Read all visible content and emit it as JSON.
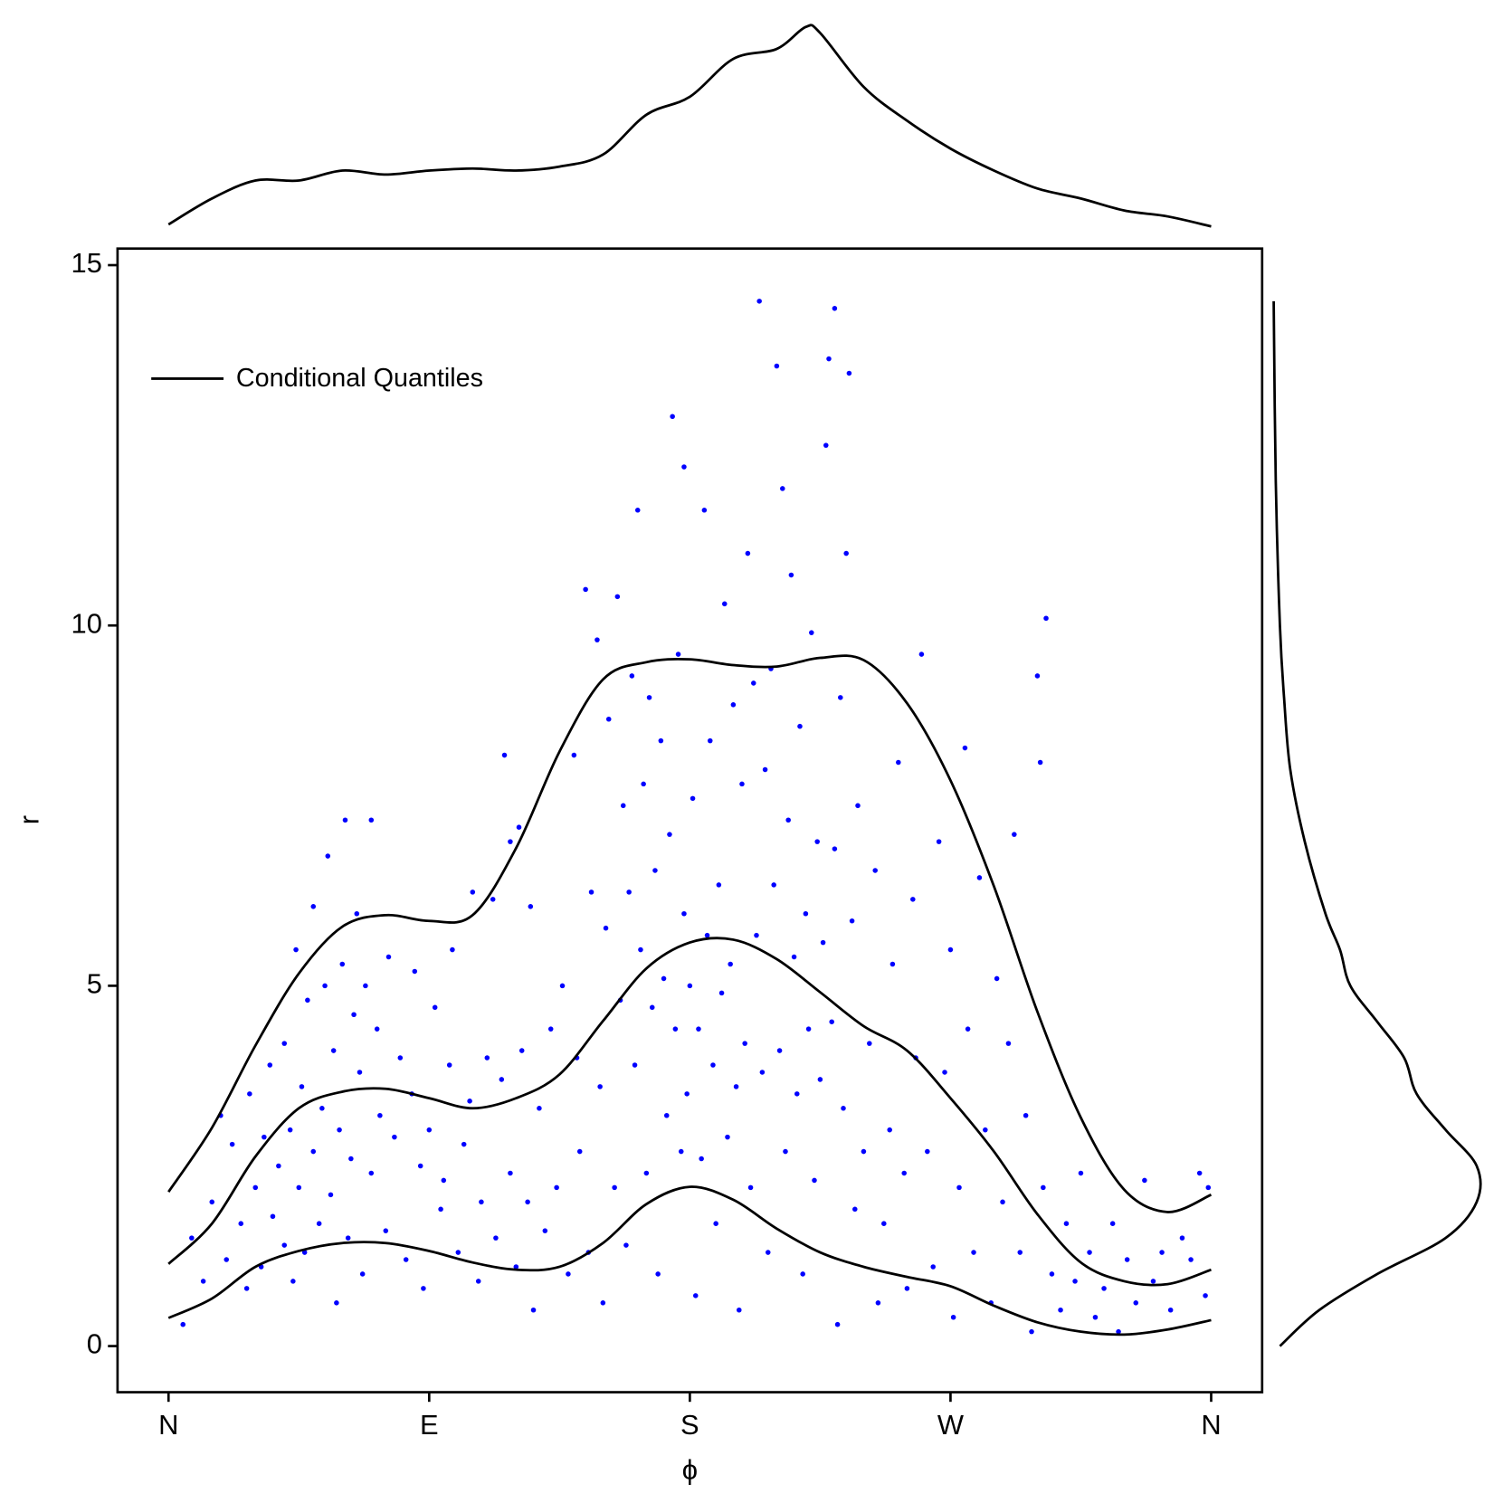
{
  "chart_data": {
    "type": "scatter",
    "x_label": "ϕ",
    "y_label": "r",
    "xlim": [
      -17.6,
      377.6
    ],
    "ylim": [
      -0.64,
      15.23
    ],
    "xticks": [
      {
        "value": 0,
        "label": "N"
      },
      {
        "value": 90,
        "label": "E"
      },
      {
        "value": 180,
        "label": "S"
      },
      {
        "value": 270,
        "label": "W"
      },
      {
        "value": 360,
        "label": "N"
      }
    ],
    "yticks": [
      0,
      5,
      10,
      15
    ],
    "legend": "upper left",
    "series": [
      {
        "color": "#0000ff",
        "x": [
          5,
          8,
          12,
          15,
          18,
          20,
          22,
          25,
          27,
          28,
          30,
          32,
          33,
          35,
          36,
          38,
          40,
          40,
          42,
          43,
          44,
          45,
          46,
          47,
          48,
          50,
          50,
          52,
          53,
          54,
          55,
          56,
          57,
          58,
          59,
          60,
          61,
          62,
          63,
          64,
          65,
          66,
          67,
          68,
          70,
          70,
          72,
          73,
          75,
          76,
          78,
          80,
          82,
          84,
          85,
          87,
          88,
          90,
          92,
          94,
          95,
          97,
          98,
          100,
          102,
          104,
          105,
          107,
          108,
          110,
          112,
          113,
          115,
          116,
          118,
          118,
          120,
          121,
          122,
          124,
          125,
          126,
          128,
          130,
          132,
          134,
          136,
          138,
          140,
          141,
          142,
          144,
          145,
          146,
          148,
          149,
          150,
          151,
          152,
          154,
          155,
          156,
          157,
          158,
          159,
          160,
          161,
          162,
          163,
          164,
          165,
          166,
          167,
          168,
          169,
          170,
          171,
          172,
          173,
          174,
          175,
          176,
          177,
          178,
          178,
          179,
          180,
          181,
          182,
          183,
          184,
          185,
          186,
          187,
          188,
          189,
          190,
          191,
          192,
          193,
          194,
          195,
          196,
          197,
          198,
          199,
          200,
          201,
          202,
          203,
          204,
          205,
          206,
          207,
          208,
          209,
          210,
          211,
          212,
          213,
          214,
          215,
          216,
          217,
          218,
          219,
          220,
          221,
          222,
          223,
          224,
          225,
          226,
          227,
          228,
          229,
          230,
          230,
          231,
          232,
          233,
          234,
          235,
          236,
          237,
          238,
          240,
          242,
          244,
          245,
          247,
          249,
          250,
          252,
          254,
          255,
          257,
          258,
          260,
          262,
          264,
          266,
          268,
          270,
          271,
          273,
          275,
          276,
          278,
          280,
          282,
          284,
          286,
          288,
          290,
          292,
          294,
          296,
          298,
          300,
          301,
          302,
          303,
          305,
          308,
          310,
          313,
          315,
          318,
          320,
          323,
          326,
          328,
          331,
          334,
          337,
          340,
          343,
          346,
          350,
          353,
          356,
          358,
          359
        ],
        "values": [
          0.3,
          1.5,
          0.9,
          2.0,
          3.2,
          1.2,
          2.8,
          1.7,
          0.8,
          3.5,
          2.2,
          1.1,
          2.9,
          3.9,
          1.8,
          2.5,
          1.4,
          4.2,
          3.0,
          0.9,
          5.5,
          2.2,
          3.6,
          1.3,
          4.8,
          2.7,
          6.1,
          1.7,
          3.3,
          5.0,
          6.8,
          2.1,
          4.1,
          0.6,
          3.0,
          5.3,
          7.3,
          1.5,
          2.6,
          4.6,
          6.0,
          3.8,
          1.0,
          5.0,
          2.4,
          7.3,
          4.4,
          3.2,
          1.6,
          5.4,
          2.9,
          4.0,
          1.2,
          3.5,
          5.2,
          2.5,
          0.8,
          3.0,
          4.7,
          1.9,
          2.3,
          3.9,
          5.5,
          1.3,
          2.8,
          3.4,
          6.3,
          0.9,
          2.0,
          4.0,
          6.2,
          1.5,
          3.7,
          8.2,
          7.0,
          2.4,
          1.1,
          7.2,
          4.1,
          2.0,
          6.1,
          0.5,
          3.3,
          1.6,
          4.4,
          2.2,
          5.0,
          1.0,
          8.2,
          4.0,
          2.7,
          10.5,
          1.3,
          6.3,
          9.8,
          3.6,
          0.6,
          5.8,
          8.7,
          2.2,
          10.4,
          4.8,
          7.5,
          1.4,
          6.3,
          9.3,
          3.9,
          11.6,
          5.5,
          7.8,
          2.4,
          9.0,
          4.7,
          6.6,
          1.0,
          8.4,
          5.1,
          3.2,
          7.1,
          12.9,
          4.4,
          9.6,
          2.7,
          6.0,
          12.2,
          3.5,
          5.0,
          7.6,
          0.7,
          4.4,
          2.6,
          11.6,
          5.7,
          8.4,
          3.9,
          1.7,
          6.4,
          4.9,
          10.3,
          2.9,
          5.3,
          8.9,
          3.6,
          0.5,
          7.8,
          4.2,
          11.0,
          2.2,
          9.2,
          5.7,
          14.5,
          3.8,
          8.0,
          1.3,
          9.4,
          6.4,
          13.6,
          4.1,
          11.9,
          2.7,
          7.3,
          10.7,
          5.4,
          3.5,
          8.6,
          1.0,
          6.0,
          4.4,
          9.9,
          2.3,
          7.0,
          3.7,
          5.6,
          12.5,
          13.7,
          4.5,
          14.4,
          6.9,
          0.3,
          9.0,
          3.3,
          11.0,
          13.5,
          5.9,
          1.9,
          7.5,
          2.7,
          4.2,
          6.6,
          0.6,
          1.7,
          3.0,
          5.3,
          8.1,
          2.4,
          0.8,
          6.2,
          4.0,
          9.6,
          2.7,
          1.1,
          7.0,
          3.8,
          5.5,
          0.4,
          2.2,
          8.3,
          4.4,
          1.3,
          6.5,
          3.0,
          0.6,
          5.1,
          2.0,
          4.2,
          7.1,
          1.3,
          3.2,
          0.2,
          9.3,
          8.1,
          2.2,
          10.1,
          1.0,
          0.5,
          1.7,
          0.9,
          2.4,
          1.3,
          0.4,
          0.8,
          1.7,
          0.2,
          1.2,
          0.6,
          2.3,
          0.9,
          1.3,
          0.5,
          1.5,
          1.2,
          2.4,
          0.7,
          2.2
        ]
      }
    ],
    "quantiles": {
      "name": "Conditional Quantiles",
      "color": "#000000",
      "x": [
        0,
        15,
        30,
        45,
        60,
        75,
        90,
        105,
        120,
        135,
        150,
        165,
        180,
        195,
        210,
        225,
        240,
        255,
        270,
        285,
        300,
        315,
        330,
        345,
        360
      ],
      "curves": [
        [
          2.14,
          3.03,
          4.17,
          5.17,
          5.82,
          5.98,
          5.9,
          5.98,
          6.91,
          8.25,
          9.25,
          9.49,
          9.53,
          9.45,
          9.43,
          9.55,
          9.52,
          8.92,
          7.85,
          6.38,
          4.64,
          3.17,
          2.17,
          1.86,
          2.1
        ],
        [
          1.14,
          1.7,
          2.63,
          3.3,
          3.53,
          3.57,
          3.44,
          3.3,
          3.44,
          3.77,
          4.51,
          5.24,
          5.6,
          5.64,
          5.37,
          4.91,
          4.44,
          4.1,
          3.44,
          2.7,
          1.83,
          1.16,
          0.9,
          0.86,
          1.06
        ],
        [
          0.39,
          0.66,
          1.1,
          1.32,
          1.43,
          1.43,
          1.32,
          1.16,
          1.06,
          1.1,
          1.43,
          1.97,
          2.21,
          2.03,
          1.63,
          1.3,
          1.1,
          0.96,
          0.83,
          0.56,
          0.33,
          0.2,
          0.16,
          0.23,
          0.36
        ]
      ]
    },
    "marginal_x": {
      "x": [
        0,
        15,
        30,
        45,
        60,
        75,
        90,
        105,
        120,
        135,
        150,
        165,
        180,
        195,
        210,
        220,
        225,
        240,
        255,
        270,
        285,
        300,
        315,
        330,
        345,
        360
      ],
      "values": [
        0.01,
        0.14,
        0.23,
        0.23,
        0.28,
        0.26,
        0.28,
        0.29,
        0.28,
        0.3,
        0.36,
        0.56,
        0.65,
        0.84,
        0.89,
        1.0,
        0.97,
        0.7,
        0.53,
        0.39,
        0.28,
        0.19,
        0.14,
        0.08,
        0.05,
        0.0
      ]
    },
    "marginal_y": {
      "y": [
        0,
        0.5,
        1.0,
        1.5,
        2.0,
        2.5,
        3.0,
        3.5,
        4.0,
        4.5,
        5.0,
        5.5,
        6.0,
        7.0,
        8.0,
        9.0,
        10,
        12,
        14.5
      ],
      "values": [
        0.03,
        0.22,
        0.5,
        0.83,
        0.98,
        0.98,
        0.83,
        0.69,
        0.63,
        0.5,
        0.37,
        0.32,
        0.25,
        0.15,
        0.08,
        0.05,
        0.03,
        0.01,
        0.0
      ]
    }
  }
}
